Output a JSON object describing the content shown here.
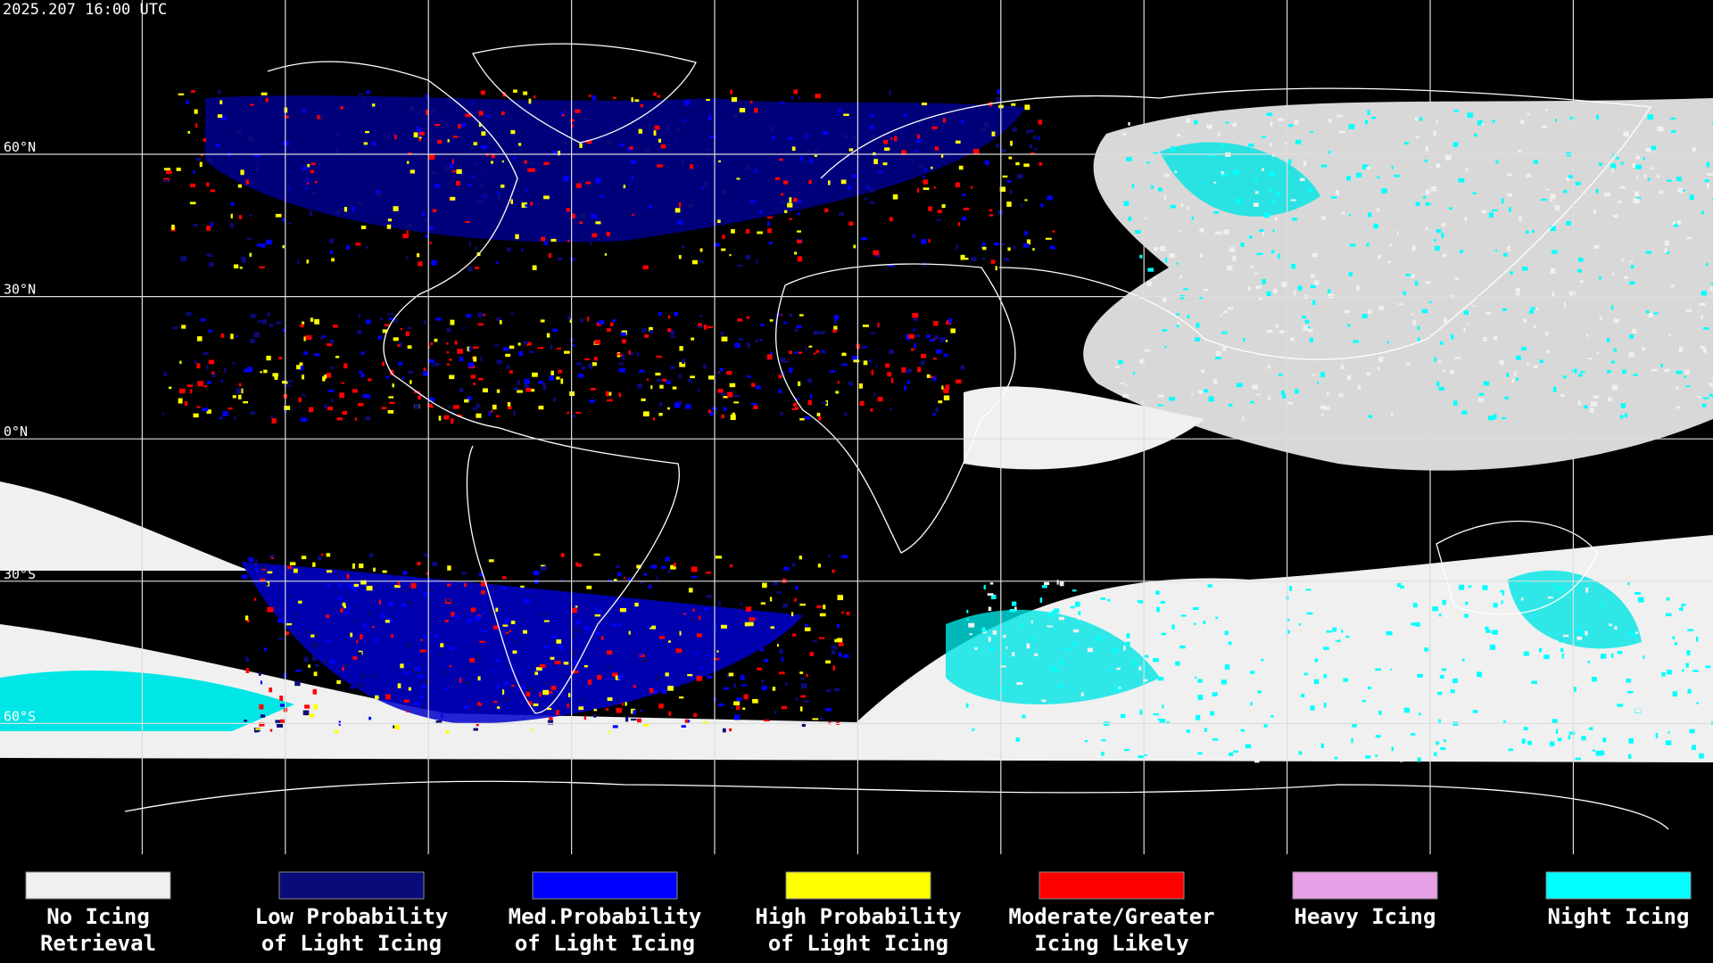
{
  "header": {
    "timestamp": "2025.207 16:00 UTC"
  },
  "map": {
    "lat_labels": [
      "60°N",
      "30°N",
      "0°N",
      "30°S",
      "60°S"
    ]
  },
  "legend": [
    {
      "color": "#f0f0f0",
      "label": [
        "No Icing",
        "Retrieval"
      ]
    },
    {
      "color": "#0a0a78",
      "label": [
        "Low Probability",
        "of Light Icing"
      ]
    },
    {
      "color": "#0000ff",
      "label": [
        "Med.Probability",
        "of Light Icing"
      ]
    },
    {
      "color": "#ffff00",
      "label": [
        "High Probability",
        "of Light Icing"
      ]
    },
    {
      "color": "#ff0000",
      "label": [
        "Moderate/Greater",
        "Icing Likely"
      ]
    },
    {
      "color": "#e6a0e6",
      "label": [
        "Heavy Icing",
        ""
      ]
    },
    {
      "color": "#00ffff",
      "label": [
        "Night Icing",
        ""
      ]
    }
  ]
}
